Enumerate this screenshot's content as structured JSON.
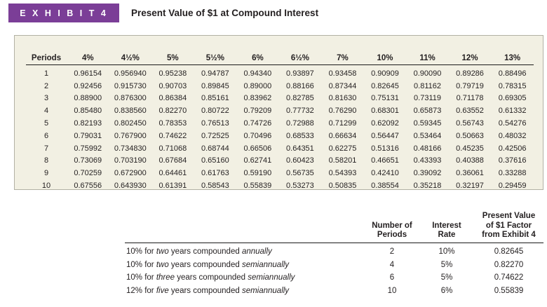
{
  "header": {
    "exhibit_label": "E X H I B I T  4",
    "title": "Present Value of $1 at Compound Interest"
  },
  "colors": {
    "exhibit_purple": "#7b3e97",
    "panel_cream": "#f2f0e3",
    "panel_border": "#b2b1a4",
    "text_dark": "#231f20"
  },
  "pv_table": {
    "columns": [
      "Periods",
      "4%",
      "4½%",
      "5%",
      "5½%",
      "6%",
      "6½%",
      "7%",
      "10%",
      "11%",
      "12%",
      "13%"
    ],
    "rows": [
      [
        "1",
        "0.96154",
        "0.956940",
        "0.95238",
        "0.94787",
        "0.94340",
        "0.93897",
        "0.93458",
        "0.90909",
        "0.90090",
        "0.89286",
        "0.88496"
      ],
      [
        "2",
        "0.92456",
        "0.915730",
        "0.90703",
        "0.89845",
        "0.89000",
        "0.88166",
        "0.87344",
        "0.82645",
        "0.81162",
        "0.79719",
        "0.78315"
      ],
      [
        "3",
        "0.88900",
        "0.876300",
        "0.86384",
        "0.85161",
        "0.83962",
        "0.82785",
        "0.81630",
        "0.75131",
        "0.73119",
        "0.71178",
        "0.69305"
      ],
      [
        "4",
        "0.85480",
        "0.838560",
        "0.82270",
        "0.80722",
        "0.79209",
        "0.77732",
        "0.76290",
        "0.68301",
        "0.65873",
        "0.63552",
        "0.61332"
      ],
      [
        "5",
        "0.82193",
        "0.802450",
        "0.78353",
        "0.76513",
        "0.74726",
        "0.72988",
        "0.71299",
        "0.62092",
        "0.59345",
        "0.56743",
        "0.54276"
      ],
      [
        "6",
        "0.79031",
        "0.767900",
        "0.74622",
        "0.72525",
        "0.70496",
        "0.68533",
        "0.66634",
        "0.56447",
        "0.53464",
        "0.50663",
        "0.48032"
      ],
      [
        "7",
        "0.75992",
        "0.734830",
        "0.71068",
        "0.68744",
        "0.66506",
        "0.64351",
        "0.62275",
        "0.51316",
        "0.48166",
        "0.45235",
        "0.42506"
      ],
      [
        "8",
        "0.73069",
        "0.703190",
        "0.67684",
        "0.65160",
        "0.62741",
        "0.60423",
        "0.58201",
        "0.46651",
        "0.43393",
        "0.40388",
        "0.37616"
      ],
      [
        "9",
        "0.70259",
        "0.672900",
        "0.64461",
        "0.61763",
        "0.59190",
        "0.56735",
        "0.54393",
        "0.42410",
        "0.39092",
        "0.36061",
        "0.33288"
      ],
      [
        "10",
        "0.67556",
        "0.643930",
        "0.61391",
        "0.58543",
        "0.55839",
        "0.53273",
        "0.50835",
        "0.38554",
        "0.35218",
        "0.32197",
        "0.29459"
      ]
    ]
  },
  "calc_table": {
    "col_headers": [
      "Number of\nPeriods",
      "Interest\nRate",
      "Present Value\nof $1 Factor\nfrom Exhibit 4"
    ],
    "rows": [
      {
        "desc": [
          {
            "t": "10% for "
          },
          {
            "t": "two",
            "i": true
          },
          {
            "t": " years compounded "
          },
          {
            "t": "annually",
            "i": true
          }
        ],
        "periods": "2",
        "rate": "10%",
        "factor": "0.82645"
      },
      {
        "desc": [
          {
            "t": "10% for "
          },
          {
            "t": "two",
            "i": true
          },
          {
            "t": " years compounded "
          },
          {
            "t": "semiannually",
            "i": true
          }
        ],
        "periods": "4",
        "rate": "5%",
        "factor": "0.82270"
      },
      {
        "desc": [
          {
            "t": "10% for "
          },
          {
            "t": "three",
            "i": true
          },
          {
            "t": " years compounded "
          },
          {
            "t": "semiannually",
            "i": true
          }
        ],
        "periods": "6",
        "rate": "5%",
        "factor": "0.74622"
      },
      {
        "desc": [
          {
            "t": "12% for "
          },
          {
            "t": "five",
            "i": true
          },
          {
            "t": " years compounded "
          },
          {
            "t": "semiannually",
            "i": true
          }
        ],
        "periods": "10",
        "rate": "6%",
        "factor": "0.55839"
      }
    ]
  }
}
